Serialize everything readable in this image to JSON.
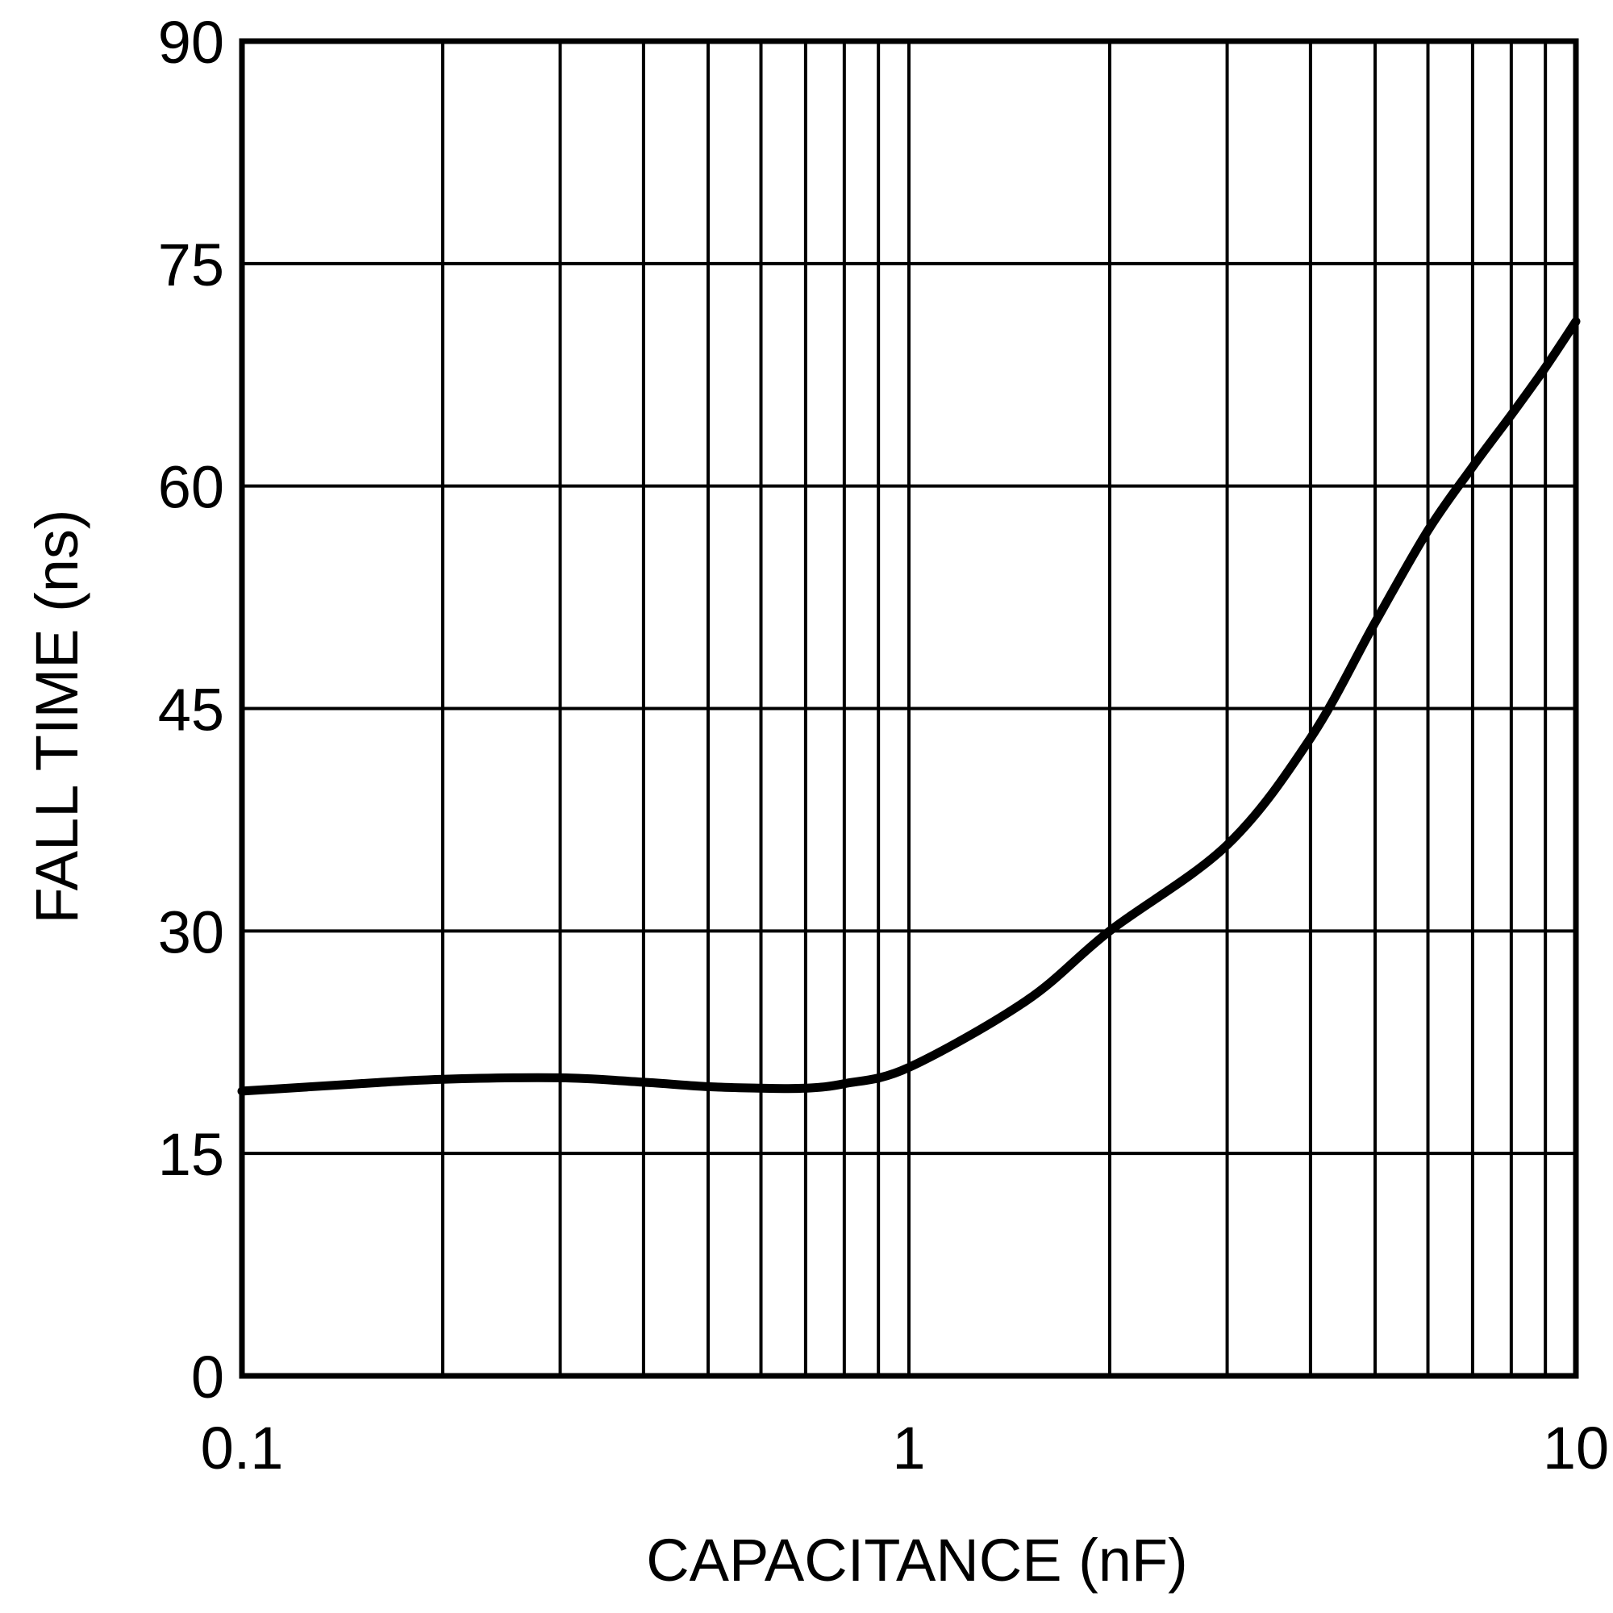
{
  "chart_data": {
    "type": "line",
    "title": "",
    "xlabel": "CAPACITANCE (nF)",
    "ylabel": "FALL TIME (ns)",
    "xscale": "log",
    "xlim": [
      0.1,
      10
    ],
    "ylim": [
      0,
      90
    ],
    "xticks": [
      0.1,
      1,
      10
    ],
    "xtick_labels": [
      "0.1",
      "1",
      "10"
    ],
    "yticks": [
      0,
      15,
      30,
      45,
      60,
      75,
      90
    ],
    "ytick_labels": [
      "0",
      "15",
      "30",
      "45",
      "60",
      "75",
      "90"
    ],
    "grid": true,
    "legend": null,
    "line_color": "#000000",
    "series": [
      {
        "name": "Fall Time",
        "x": [
          0.1,
          0.15,
          0.2,
          0.3,
          0.4,
          0.5,
          0.6,
          0.7,
          0.8,
          1.0,
          1.5,
          2.0,
          3.0,
          4.0,
          5.0,
          6.0,
          7.0,
          8.0,
          9.0,
          10.0
        ],
        "y": [
          19.2,
          19.7,
          20.0,
          20.1,
          19.8,
          19.5,
          19.4,
          19.4,
          19.7,
          20.8,
          25.3,
          30.0,
          35.8,
          43.0,
          50.8,
          57.0,
          61.3,
          64.8,
          68.0,
          71.1
        ]
      }
    ]
  }
}
